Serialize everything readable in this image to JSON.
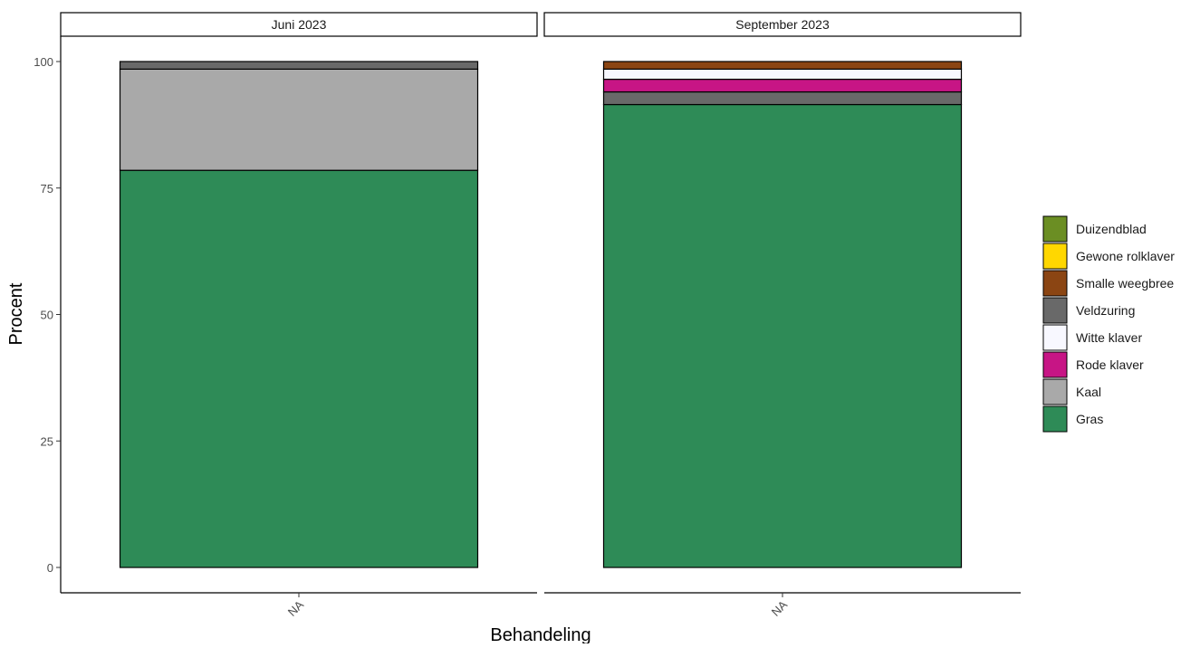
{
  "chart_data": {
    "type": "bar",
    "stacked": true,
    "xlabel": "Behandeling",
    "ylabel": "Procent",
    "ylim": [
      0,
      105
    ],
    "yticks": [
      0,
      25,
      50,
      75,
      100
    ],
    "grid": false,
    "legend_position": "right",
    "legend_order": [
      "Duizendblad",
      "Gewone rolklaver",
      "Smalle weegbree",
      "Veldzuring",
      "Witte klaver",
      "Rode klaver",
      "Kaal",
      "Gras"
    ],
    "colors": {
      "Duizendblad": "#6B8E23",
      "Gewone rolklaver": "#FFD700",
      "Smalle weegbree": "#8B4513",
      "Veldzuring": "#696969",
      "Witte klaver": "#F8F8FF",
      "Rode klaver": "#C71585",
      "Kaal": "#A9A9A9",
      "Gras": "#2E8B57"
    },
    "panels": [
      {
        "title": "Juni 2023",
        "categories": [
          "NA"
        ],
        "stack": [
          {
            "name": "Gras",
            "value": 78.5
          },
          {
            "name": "Kaal",
            "value": 20.0
          },
          {
            "name": "Veldzuring",
            "value": 1.5
          }
        ]
      },
      {
        "title": "September 2023",
        "categories": [
          "NA"
        ],
        "stack": [
          {
            "name": "Gras",
            "value": 91.5
          },
          {
            "name": "Veldzuring",
            "value": 2.5
          },
          {
            "name": "Rode klaver",
            "value": 2.5
          },
          {
            "name": "Witte klaver",
            "value": 2.0
          },
          {
            "name": "Smalle weegbree",
            "value": 1.5
          }
        ]
      }
    ]
  }
}
